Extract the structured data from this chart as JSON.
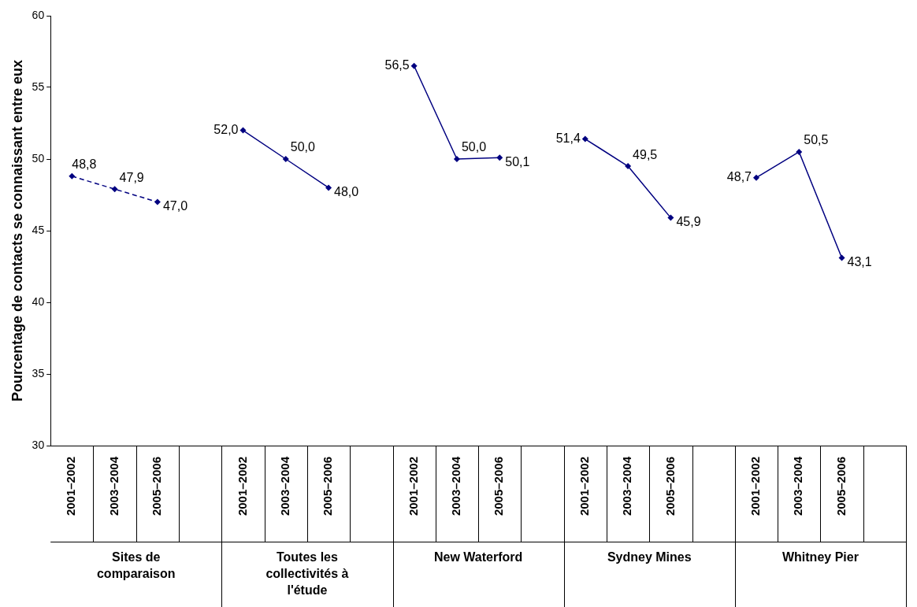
{
  "chart_data": {
    "type": "line",
    "ylabel": "Pourcentage de contacts se connaissant entre eux",
    "categories": [
      "2001–2002",
      "2003–2004",
      "2005–2006",
      null,
      "2001–2002",
      "2003–2004",
      "2005–2006",
      null,
      "2001–2002",
      "2003–2004",
      "2005–2006",
      null,
      "2001–2002",
      "2003–2004",
      "2005–2006",
      null,
      "2001–2002",
      "2003–2004",
      "2005–2006",
      null
    ],
    "annotations": [
      "Sites de comparaison",
      "Toutes les collectivités à l'étude",
      "New Waterford",
      "Sydney Mines",
      "Whitney Pier"
    ],
    "series": [
      {
        "color": "#000080",
        "line_style": "dashed",
        "values": [
          48.8,
          47.9,
          47.0,
          null,
          null,
          null,
          null,
          null,
          null,
          null,
          null,
          null,
          null,
          null,
          null,
          null,
          null,
          null,
          null,
          null
        ],
        "value_labels": [
          "48,8",
          "47,9",
          "47,0",
          null,
          null,
          null,
          null,
          null,
          null,
          null,
          null,
          null,
          null,
          null,
          null,
          null,
          null,
          null,
          null,
          null
        ]
      },
      {
        "color": "#000080",
        "line_style": "solid",
        "values": [
          null,
          null,
          null,
          null,
          52.0,
          50.0,
          48.0,
          null,
          null,
          null,
          null,
          null,
          null,
          null,
          null,
          null,
          null,
          null,
          null,
          null
        ],
        "value_labels": [
          null,
          null,
          null,
          null,
          "52,0",
          "50,0",
          "48,0",
          null,
          null,
          null,
          null,
          null,
          null,
          null,
          null,
          null,
          null,
          null,
          null,
          null
        ]
      },
      {
        "color": "#000080",
        "line_style": "solid",
        "values": [
          null,
          null,
          null,
          null,
          null,
          null,
          null,
          null,
          56.5,
          50.0,
          50.1,
          null,
          null,
          null,
          null,
          null,
          null,
          null,
          null,
          null
        ],
        "value_labels": [
          null,
          null,
          null,
          null,
          null,
          null,
          null,
          null,
          "56,5",
          "50,0",
          "50,1",
          null,
          null,
          null,
          null,
          null,
          null,
          null,
          null,
          null
        ]
      },
      {
        "color": "#000080",
        "line_style": "solid",
        "values": [
          null,
          null,
          null,
          null,
          null,
          null,
          null,
          null,
          null,
          null,
          null,
          null,
          51.4,
          49.5,
          45.9,
          null,
          null,
          null,
          null,
          null
        ],
        "value_labels": [
          null,
          null,
          null,
          null,
          null,
          null,
          null,
          null,
          null,
          null,
          null,
          null,
          "51,4",
          "49,5",
          "45,9",
          null,
          null,
          null,
          null,
          null
        ]
      },
      {
        "color": "#000080",
        "line_style": "solid",
        "values": [
          null,
          null,
          null,
          null,
          null,
          null,
          null,
          null,
          null,
          null,
          null,
          null,
          null,
          null,
          null,
          null,
          48.7,
          50.5,
          43.1,
          null
        ],
        "value_labels": [
          null,
          null,
          null,
          null,
          null,
          null,
          null,
          null,
          null,
          null,
          null,
          null,
          null,
          null,
          null,
          null,
          "48,7",
          "50,5",
          "43,1",
          null
        ]
      }
    ],
    "ylim": [
      30,
      60
    ],
    "yticks": [
      30,
      35,
      40,
      45,
      50,
      55,
      60
    ],
    "marker": "diamond",
    "grid": false,
    "legend": false
  }
}
